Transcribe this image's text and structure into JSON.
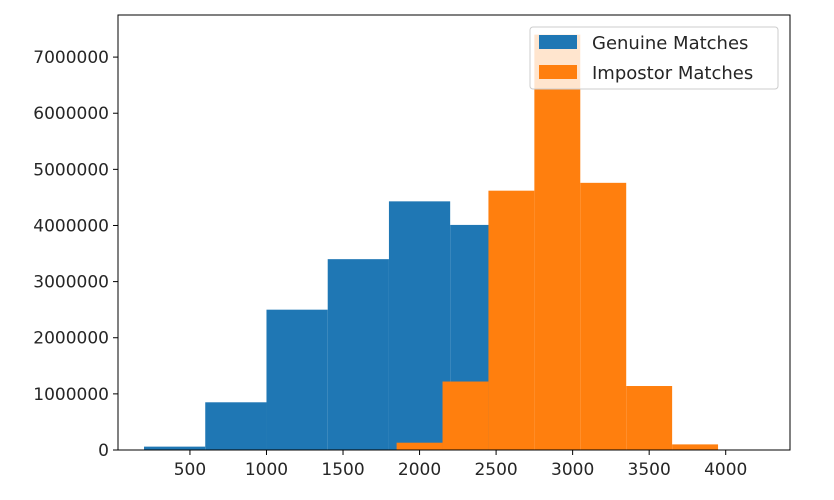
{
  "chart_data": {
    "type": "bar",
    "subtype": "histogram",
    "title": "",
    "xlabel": "",
    "ylabel": "",
    "xlim": [
      30,
      4420
    ],
    "ylim": [
      0,
      7750000
    ],
    "x_ticks": [
      500,
      1000,
      1500,
      2000,
      2500,
      3000,
      3500,
      4000
    ],
    "y_ticks": [
      0,
      1000000,
      2000000,
      3000000,
      4000000,
      5000000,
      6000000,
      7000000
    ],
    "x_tick_labels": [
      "500",
      "1000",
      "1500",
      "2000",
      "2500",
      "3000",
      "3500",
      "4000"
    ],
    "y_tick_labels": [
      "0",
      "1000000",
      "2000000",
      "3000000",
      "4000000",
      "5000000",
      "6000000",
      "7000000"
    ],
    "grid": false,
    "legend_position": "top-right",
    "series": [
      {
        "name": "Genuine Matches",
        "color": "#1f77b4",
        "bin_edges": [
          200,
          600,
          1000,
          1400,
          1800,
          2200,
          2600
        ],
        "values": [
          60000,
          850000,
          2500000,
          3400000,
          4430000,
          4010000
        ]
      },
      {
        "name": "Impostor Matches",
        "color": "#ff7f0e",
        "bin_edges": [
          1850,
          2150,
          2450,
          2750,
          3050,
          3350,
          3650,
          3950
        ],
        "values": [
          130000,
          1220000,
          4620000,
          7400000,
          4760000,
          1140000,
          100000
        ]
      }
    ]
  }
}
